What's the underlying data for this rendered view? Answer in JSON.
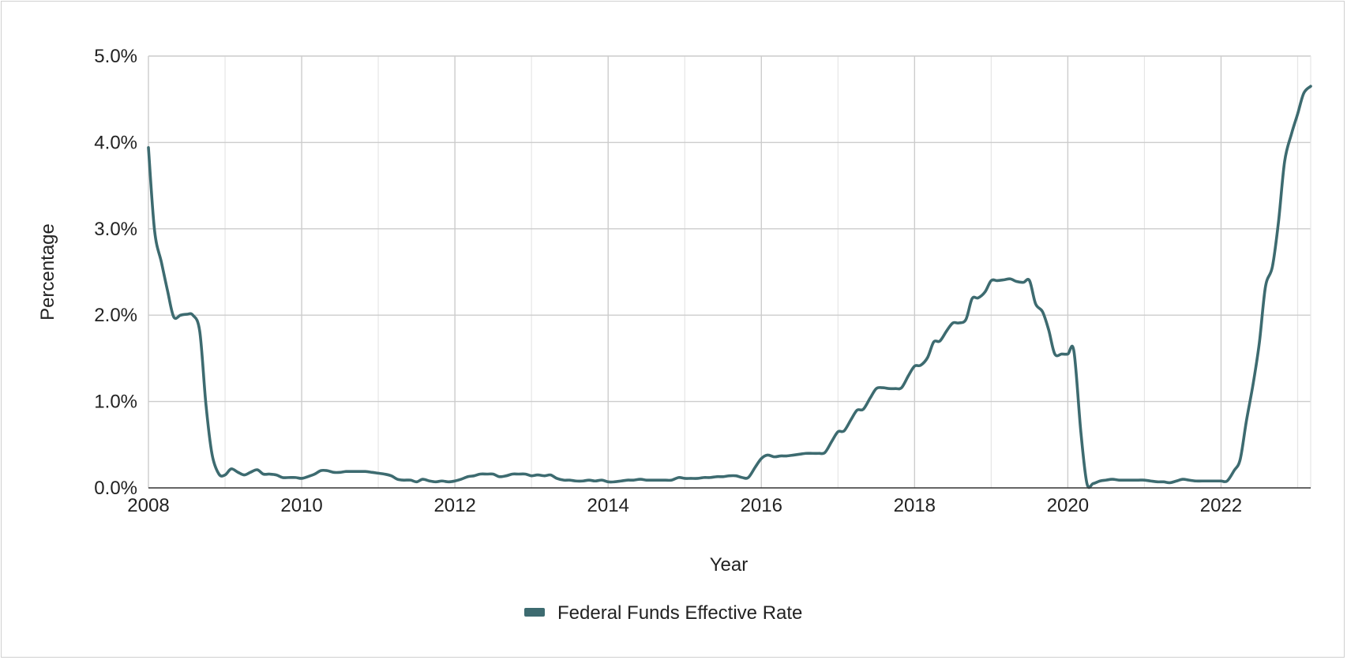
{
  "chart_data": {
    "type": "line",
    "title": "",
    "xlabel": "Year",
    "ylabel": "Percentage",
    "xlim": [
      2008.0,
      2023.17
    ],
    "ylim": [
      0,
      5.0
    ],
    "x_ticks": [
      2008,
      2010,
      2012,
      2014,
      2016,
      2018,
      2020,
      2022
    ],
    "x_tick_labels": [
      "2008",
      "2010",
      "2012",
      "2014",
      "2016",
      "2018",
      "2020",
      "2022"
    ],
    "y_ticks": [
      0,
      1,
      2,
      3,
      4,
      5
    ],
    "y_tick_labels": [
      "0.0%",
      "1.0%",
      "2.0%",
      "3.0%",
      "4.0%",
      "5.0%"
    ],
    "grid": true,
    "legend_position": "bottom-center",
    "series": [
      {
        "name": "Federal Funds Effective Rate",
        "color": "#3d6b70",
        "points": [
          [
            2008.0,
            3.94
          ],
          [
            2008.08,
            2.98
          ],
          [
            2008.17,
            2.61
          ],
          [
            2008.25,
            2.28
          ],
          [
            2008.33,
            1.98
          ],
          [
            2008.42,
            2.0
          ],
          [
            2008.5,
            2.01
          ],
          [
            2008.58,
            2.0
          ],
          [
            2008.67,
            1.81
          ],
          [
            2008.75,
            0.97
          ],
          [
            2008.83,
            0.39
          ],
          [
            2008.92,
            0.16
          ],
          [
            2009.0,
            0.15
          ],
          [
            2009.08,
            0.22
          ],
          [
            2009.17,
            0.18
          ],
          [
            2009.25,
            0.15
          ],
          [
            2009.33,
            0.18
          ],
          [
            2009.42,
            0.21
          ],
          [
            2009.5,
            0.16
          ],
          [
            2009.58,
            0.16
          ],
          [
            2009.67,
            0.15
          ],
          [
            2009.75,
            0.12
          ],
          [
            2009.83,
            0.12
          ],
          [
            2009.92,
            0.12
          ],
          [
            2010.0,
            0.11
          ],
          [
            2010.08,
            0.13
          ],
          [
            2010.17,
            0.16
          ],
          [
            2010.25,
            0.2
          ],
          [
            2010.33,
            0.2
          ],
          [
            2010.42,
            0.18
          ],
          [
            2010.5,
            0.18
          ],
          [
            2010.58,
            0.19
          ],
          [
            2010.67,
            0.19
          ],
          [
            2010.75,
            0.19
          ],
          [
            2010.83,
            0.19
          ],
          [
            2010.92,
            0.18
          ],
          [
            2011.0,
            0.17
          ],
          [
            2011.08,
            0.16
          ],
          [
            2011.17,
            0.14
          ],
          [
            2011.25,
            0.1
          ],
          [
            2011.33,
            0.09
          ],
          [
            2011.42,
            0.09
          ],
          [
            2011.5,
            0.07
          ],
          [
            2011.58,
            0.1
          ],
          [
            2011.67,
            0.08
          ],
          [
            2011.75,
            0.07
          ],
          [
            2011.83,
            0.08
          ],
          [
            2011.92,
            0.07
          ],
          [
            2012.0,
            0.08
          ],
          [
            2012.08,
            0.1
          ],
          [
            2012.17,
            0.13
          ],
          [
            2012.25,
            0.14
          ],
          [
            2012.33,
            0.16
          ],
          [
            2012.42,
            0.16
          ],
          [
            2012.5,
            0.16
          ],
          [
            2012.58,
            0.13
          ],
          [
            2012.67,
            0.14
          ],
          [
            2012.75,
            0.16
          ],
          [
            2012.83,
            0.16
          ],
          [
            2012.92,
            0.16
          ],
          [
            2013.0,
            0.14
          ],
          [
            2013.08,
            0.15
          ],
          [
            2013.17,
            0.14
          ],
          [
            2013.25,
            0.15
          ],
          [
            2013.33,
            0.11
          ],
          [
            2013.42,
            0.09
          ],
          [
            2013.5,
            0.09
          ],
          [
            2013.58,
            0.08
          ],
          [
            2013.67,
            0.08
          ],
          [
            2013.75,
            0.09
          ],
          [
            2013.83,
            0.08
          ],
          [
            2013.92,
            0.09
          ],
          [
            2014.0,
            0.07
          ],
          [
            2014.08,
            0.07
          ],
          [
            2014.17,
            0.08
          ],
          [
            2014.25,
            0.09
          ],
          [
            2014.33,
            0.09
          ],
          [
            2014.42,
            0.1
          ],
          [
            2014.5,
            0.09
          ],
          [
            2014.58,
            0.09
          ],
          [
            2014.67,
            0.09
          ],
          [
            2014.75,
            0.09
          ],
          [
            2014.83,
            0.09
          ],
          [
            2014.92,
            0.12
          ],
          [
            2015.0,
            0.11
          ],
          [
            2015.08,
            0.11
          ],
          [
            2015.17,
            0.11
          ],
          [
            2015.25,
            0.12
          ],
          [
            2015.33,
            0.12
          ],
          [
            2015.42,
            0.13
          ],
          [
            2015.5,
            0.13
          ],
          [
            2015.58,
            0.14
          ],
          [
            2015.67,
            0.14
          ],
          [
            2015.75,
            0.12
          ],
          [
            2015.83,
            0.12
          ],
          [
            2015.92,
            0.24
          ],
          [
            2016.0,
            0.34
          ],
          [
            2016.08,
            0.38
          ],
          [
            2016.17,
            0.36
          ],
          [
            2016.25,
            0.37
          ],
          [
            2016.33,
            0.37
          ],
          [
            2016.42,
            0.38
          ],
          [
            2016.5,
            0.39
          ],
          [
            2016.58,
            0.4
          ],
          [
            2016.67,
            0.4
          ],
          [
            2016.75,
            0.4
          ],
          [
            2016.83,
            0.41
          ],
          [
            2016.92,
            0.54
          ],
          [
            2017.0,
            0.65
          ],
          [
            2017.08,
            0.66
          ],
          [
            2017.17,
            0.79
          ],
          [
            2017.25,
            0.9
          ],
          [
            2017.33,
            0.91
          ],
          [
            2017.42,
            1.04
          ],
          [
            2017.5,
            1.15
          ],
          [
            2017.58,
            1.16
          ],
          [
            2017.67,
            1.15
          ],
          [
            2017.75,
            1.15
          ],
          [
            2017.83,
            1.16
          ],
          [
            2017.92,
            1.3
          ],
          [
            2018.0,
            1.41
          ],
          [
            2018.08,
            1.42
          ],
          [
            2018.17,
            1.51
          ],
          [
            2018.25,
            1.69
          ],
          [
            2018.33,
            1.7
          ],
          [
            2018.42,
            1.82
          ],
          [
            2018.5,
            1.91
          ],
          [
            2018.58,
            1.91
          ],
          [
            2018.67,
            1.95
          ],
          [
            2018.75,
            2.19
          ],
          [
            2018.83,
            2.2
          ],
          [
            2018.92,
            2.27
          ],
          [
            2019.0,
            2.4
          ],
          [
            2019.08,
            2.4
          ],
          [
            2019.17,
            2.41
          ],
          [
            2019.25,
            2.42
          ],
          [
            2019.33,
            2.39
          ],
          [
            2019.42,
            2.38
          ],
          [
            2019.5,
            2.4
          ],
          [
            2019.58,
            2.13
          ],
          [
            2019.67,
            2.04
          ],
          [
            2019.75,
            1.83
          ],
          [
            2019.83,
            1.55
          ],
          [
            2019.92,
            1.55
          ],
          [
            2020.0,
            1.55
          ],
          [
            2020.08,
            1.58
          ],
          [
            2020.17,
            0.65
          ],
          [
            2020.25,
            0.05
          ],
          [
            2020.33,
            0.05
          ],
          [
            2020.42,
            0.08
          ],
          [
            2020.5,
            0.09
          ],
          [
            2020.58,
            0.1
          ],
          [
            2020.67,
            0.09
          ],
          [
            2020.75,
            0.09
          ],
          [
            2020.83,
            0.09
          ],
          [
            2020.92,
            0.09
          ],
          [
            2021.0,
            0.09
          ],
          [
            2021.08,
            0.08
          ],
          [
            2021.17,
            0.07
          ],
          [
            2021.25,
            0.07
          ],
          [
            2021.33,
            0.06
          ],
          [
            2021.42,
            0.08
          ],
          [
            2021.5,
            0.1
          ],
          [
            2021.58,
            0.09
          ],
          [
            2021.67,
            0.08
          ],
          [
            2021.75,
            0.08
          ],
          [
            2021.83,
            0.08
          ],
          [
            2021.92,
            0.08
          ],
          [
            2022.0,
            0.08
          ],
          [
            2022.08,
            0.08
          ],
          [
            2022.17,
            0.2
          ],
          [
            2022.25,
            0.33
          ],
          [
            2022.33,
            0.77
          ],
          [
            2022.42,
            1.21
          ],
          [
            2022.5,
            1.68
          ],
          [
            2022.58,
            2.33
          ],
          [
            2022.67,
            2.56
          ],
          [
            2022.75,
            3.08
          ],
          [
            2022.83,
            3.78
          ],
          [
            2022.92,
            4.1
          ],
          [
            2023.0,
            4.33
          ],
          [
            2023.08,
            4.57
          ],
          [
            2023.17,
            4.65
          ]
        ]
      }
    ]
  }
}
